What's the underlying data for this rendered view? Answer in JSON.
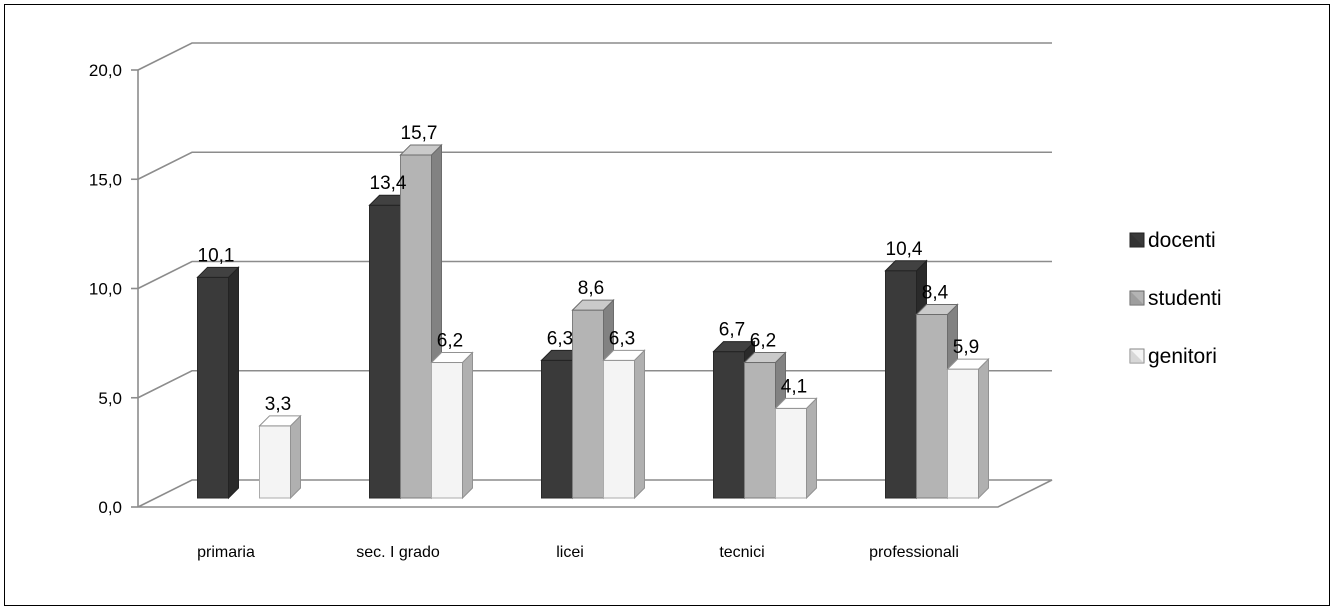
{
  "chart_data": {
    "type": "bar",
    "categories": [
      "primaria",
      "sec. I grado",
      "licei",
      "tecnici",
      "professionali"
    ],
    "series": [
      {
        "name": "docenti",
        "values": [
          10.1,
          13.4,
          6.3,
          6.7,
          10.4
        ]
      },
      {
        "name": "studenti",
        "values": [
          null,
          15.7,
          8.6,
          6.2,
          8.4
        ]
      },
      {
        "name": "genitori",
        "values": [
          3.3,
          6.2,
          6.3,
          4.1,
          5.9
        ]
      }
    ],
    "y_ticks": [
      "0,0",
      "5,0",
      "10,0",
      "15,0",
      "20,0"
    ],
    "ylim": [
      0,
      20
    ],
    "grid": true,
    "legend_position": "right",
    "decimal_separator": ",",
    "colors": {
      "docenti": "#3a3a3a",
      "studenti": "#b4b4b4",
      "genitori": "#f4f4f4"
    }
  }
}
